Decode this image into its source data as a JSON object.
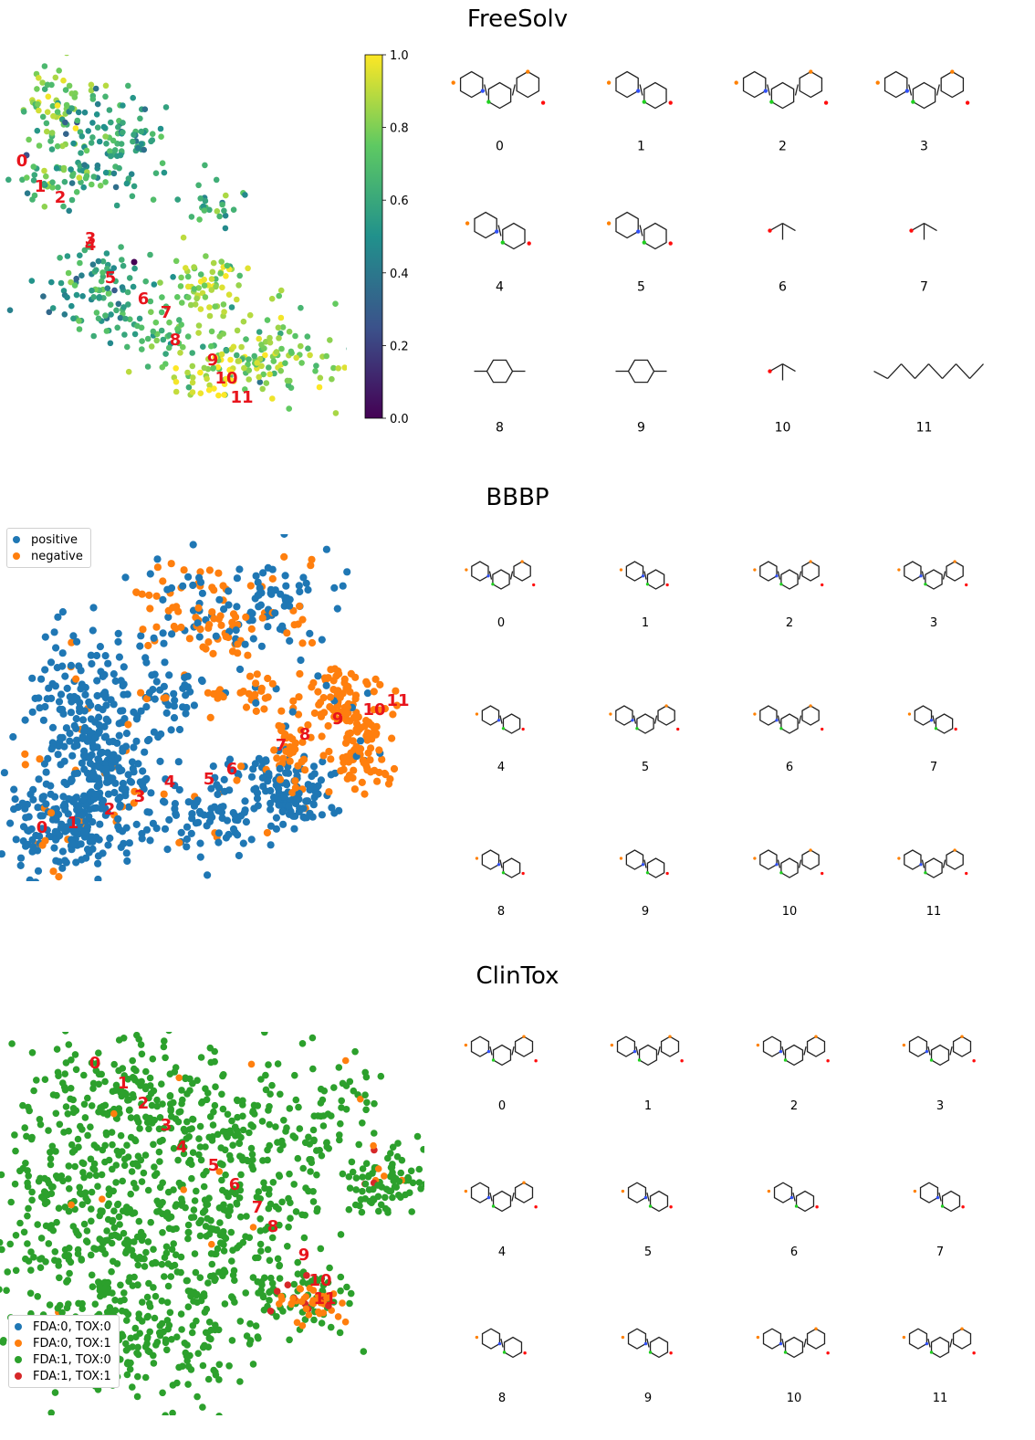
{
  "colors": {
    "positive": "#1f77b4",
    "negative": "#ff7f0e",
    "fda0_tox0": "#1f77b4",
    "fda0_tox1": "#ff7f0e",
    "fda1_tox0": "#2ca02c",
    "fda1_tox1": "#d62728",
    "highlight_label": "#e8141c",
    "colormap": "viridis"
  },
  "chart_data": [
    {
      "type": "scatter",
      "title": "FreeSolv",
      "xlabel": "",
      "ylabel": "",
      "grid": false,
      "axes_visible": false,
      "colorbar": {
        "colormap": "viridis",
        "range": [
          0.0,
          1.0
        ],
        "ticks": [
          "0.0",
          "0.2",
          "0.4",
          "0.6",
          "0.8",
          "1.0"
        ]
      },
      "highlighted_points": [
        "0",
        "1",
        "2",
        "3",
        "4",
        "5",
        "6",
        "7",
        "8",
        "9",
        "10",
        "11"
      ],
      "molecule_grid": [
        "0",
        "1",
        "2",
        "3",
        "4",
        "5",
        "6",
        "7",
        "8",
        "9",
        "10",
        "11"
      ]
    },
    {
      "type": "scatter",
      "title": "BBBP",
      "xlabel": "",
      "ylabel": "",
      "grid": false,
      "axes_visible": false,
      "legend": {
        "position": "upper-left",
        "entries": [
          "positive",
          "negative"
        ]
      },
      "highlighted_points": [
        "0",
        "1",
        "2",
        "3",
        "4",
        "5",
        "6",
        "7",
        "8",
        "9",
        "10",
        "11"
      ],
      "molecule_grid": [
        "0",
        "1",
        "2",
        "3",
        "4",
        "5",
        "6",
        "7",
        "8",
        "9",
        "10",
        "11"
      ]
    },
    {
      "type": "scatter",
      "title": "ClinTox",
      "xlabel": "",
      "ylabel": "",
      "grid": false,
      "axes_visible": false,
      "legend": {
        "position": "lower-left",
        "entries": [
          "FDA:0, TOX:0",
          "FDA:0, TOX:1",
          "FDA:1, TOX:0",
          "FDA:1, TOX:1"
        ]
      },
      "highlighted_points": [
        "0",
        "1",
        "2",
        "3",
        "4",
        "5",
        "6",
        "7",
        "8",
        "9",
        "10",
        "11"
      ],
      "molecule_grid": [
        "0",
        "1",
        "2",
        "3",
        "4",
        "5",
        "6",
        "7",
        "8",
        "9",
        "10",
        "11"
      ]
    }
  ]
}
